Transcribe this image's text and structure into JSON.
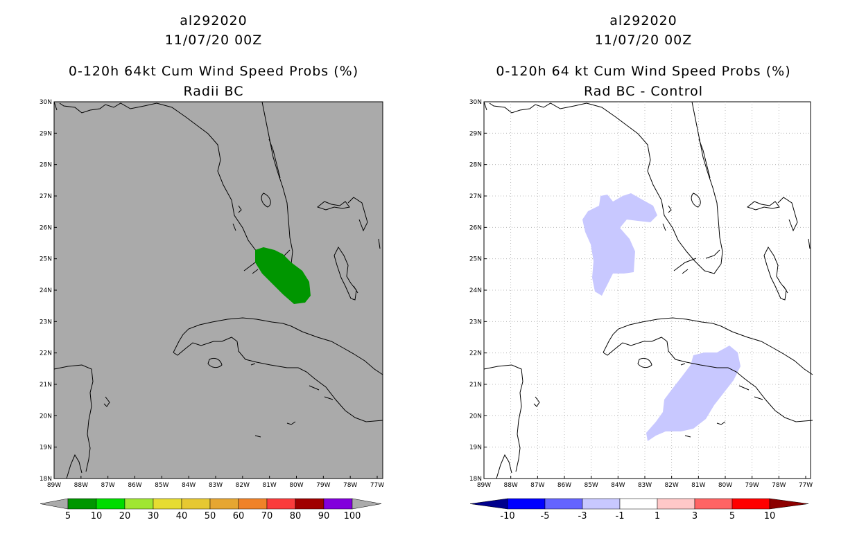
{
  "left": {
    "title_line1": "al292020",
    "title_line2": "11/07/20 00Z",
    "title_line3": "0-120h 64kt Cum Wind Speed Probs (%)",
    "title_line4": "Radii BC",
    "background_color": "#aaaaaa",
    "lat_labels": [
      "30N",
      "29N",
      "28N",
      "27N",
      "26N",
      "25N",
      "24N",
      "23N",
      "22N",
      "21N",
      "20N",
      "19N",
      "18N"
    ],
    "lon_labels": [
      "89W",
      "88W",
      "87W",
      "86W",
      "85W",
      "84W",
      "83W",
      "82W",
      "81W",
      "80W",
      "79W",
      "78W",
      "77W"
    ],
    "legend": {
      "colors": [
        "#009600",
        "#00dc00",
        "#a0e632",
        "#e6dc32",
        "#e6c832",
        "#e6a632",
        "#f08228",
        "#fa3c3c",
        "#a00000",
        "#8200dc"
      ],
      "labels": [
        "5",
        "10",
        "20",
        "30",
        "40",
        "50",
        "60",
        "70",
        "80",
        "90",
        "100"
      ],
      "end_color": "#aaaaaa"
    },
    "probability_color": "#009600"
  },
  "right": {
    "title_line1": "al292020",
    "title_line2": "11/07/20 00Z",
    "title_line3": "0-120h 64 kt Cum Wind Speed Probs (%)",
    "title_line4": "Rad BC - Control",
    "background_color": "#ffffff",
    "lat_labels": [
      "30N",
      "29N",
      "28N",
      "27N",
      "26N",
      "25N",
      "24N",
      "23N",
      "22N",
      "21N",
      "20N",
      "19N",
      "18N"
    ],
    "lon_labels": [
      "89W",
      "88W",
      "87W",
      "86W",
      "85W",
      "84W",
      "83W",
      "82W",
      "81W",
      "80W",
      "79W",
      "78W",
      "77W"
    ],
    "legend": {
      "colors": [
        "#0000ff",
        "#6464ff",
        "#c8c8ff",
        "#ffffff",
        "#ffc8c8",
        "#ff6464",
        "#ff0000"
      ],
      "labels": [
        "-10",
        "-5",
        "-3",
        "-1",
        "1",
        "3",
        "5",
        "10"
      ],
      "left_end_color": "#00008c",
      "right_end_color": "#8c0000"
    },
    "difference_color": "#c8c8ff"
  }
}
